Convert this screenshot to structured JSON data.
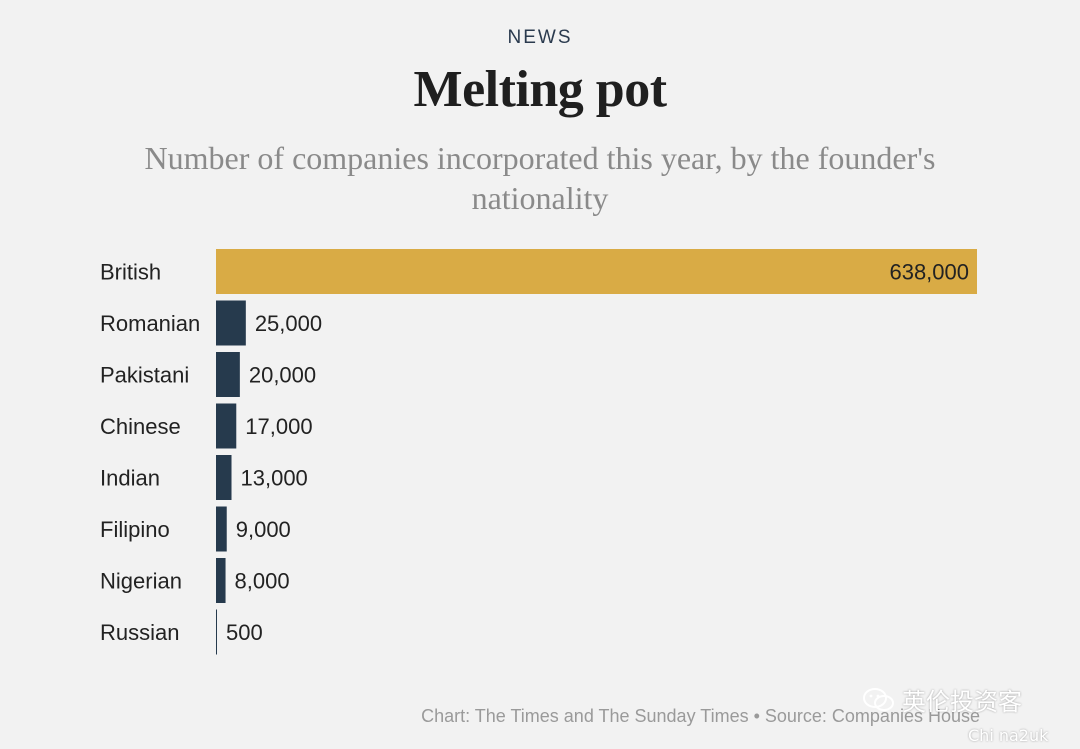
{
  "header": {
    "kicker": "NEWS",
    "title": "Melting pot",
    "subtitle": "Number of companies incorporated this year, by the founder's nationality"
  },
  "chart_data": {
    "type": "bar",
    "orientation": "horizontal",
    "categories": [
      "British",
      "Romanian",
      "Pakistani",
      "Chinese",
      "Indian",
      "Filipino",
      "Nigerian",
      "Russian"
    ],
    "values": [
      638000,
      25000,
      20000,
      17000,
      13000,
      9000,
      8000,
      500
    ],
    "value_labels": [
      "638,000",
      "25,000",
      "20,000",
      "17,000",
      "13,000",
      "9,000",
      "8,000",
      "500"
    ],
    "xlim": [
      0,
      638000
    ],
    "highlight_color": "#d9ab45",
    "bar_color": "#263a4d",
    "grid": false,
    "legend": "none"
  },
  "footer": {
    "credit": "Chart: The Times and The Sunday Times • Source: Companies House"
  },
  "watermark": {
    "text": "英伦投资客",
    "subtext": "Chi na2uk",
    "icon": "wechat-icon"
  }
}
